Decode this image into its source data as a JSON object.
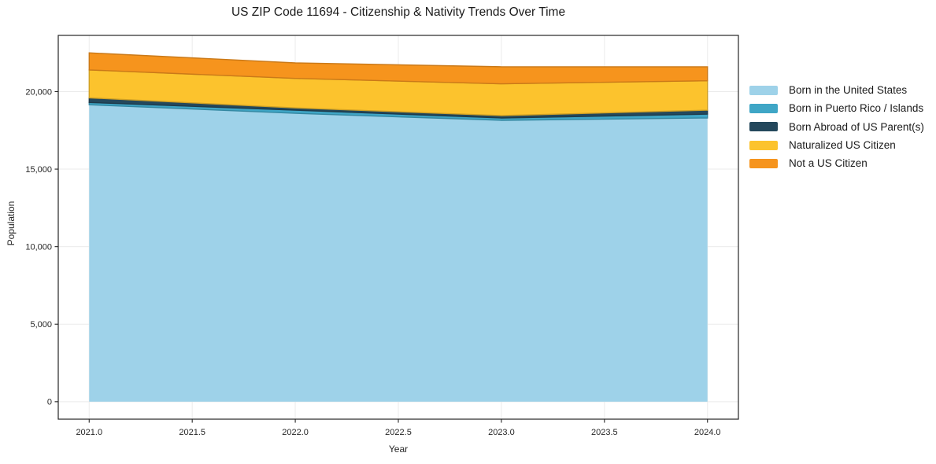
{
  "chart_data": {
    "type": "area",
    "stacked": true,
    "title": "US ZIP Code 11694 - Citizenship & Nativity Trends Over Time",
    "xlabel": "Year",
    "ylabel": "Population",
    "x": [
      2021,
      2022,
      2023,
      2024
    ],
    "series": [
      {
        "name": "Born in the United States",
        "color": "#9ED2E9",
        "values": [
          19150,
          18600,
          18150,
          18300
        ]
      },
      {
        "name": "Born in Puerto Rico / Islands",
        "color": "#3FA6C6",
        "values": [
          150,
          200,
          150,
          250
        ]
      },
      {
        "name": "Born Abroad of US Parent(s)",
        "color": "#24485C",
        "values": [
          300,
          150,
          150,
          250
        ]
      },
      {
        "name": "Naturalized US Citizen",
        "color": "#FCC32D",
        "values": [
          1800,
          1900,
          2050,
          1900
        ]
      },
      {
        "name": "Not a US Citizen",
        "color": "#F6941D",
        "values": [
          1100,
          1000,
          1100,
          900
        ]
      }
    ],
    "xlim": [
      2020.85,
      2024.15
    ],
    "ylim": [
      -1125,
      23625
    ],
    "xticks": {
      "values": [
        2021.0,
        2021.5,
        2022.0,
        2022.5,
        2023.0,
        2023.5,
        2024.0
      ],
      "labels": [
        "2021.0",
        "2021.5",
        "2022.0",
        "2022.5",
        "2023.0",
        "2023.5",
        "2024.0"
      ]
    },
    "yticks": {
      "values": [
        0,
        5000,
        10000,
        15000,
        20000
      ],
      "labels": [
        "0",
        "5,000",
        "10,000",
        "15,000",
        "20,000"
      ]
    },
    "grid": true,
    "grid_color": "#ebebeb",
    "spine_color": "#262626",
    "legend_position": "right"
  }
}
